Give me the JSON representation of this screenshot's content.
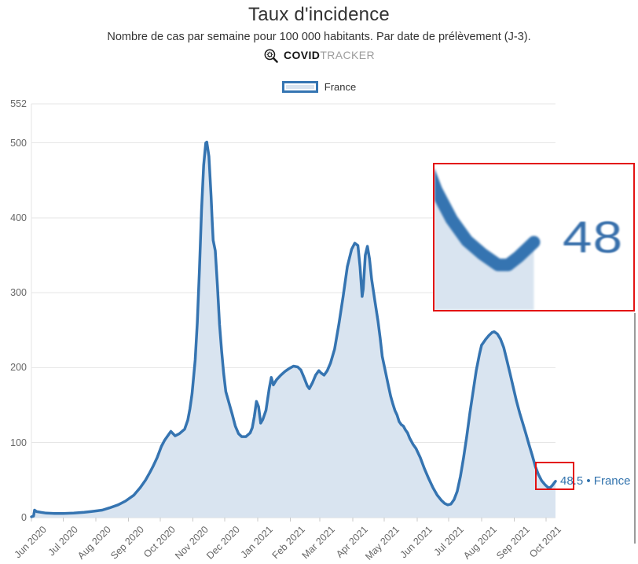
{
  "header": {
    "title": "Taux d'incidence",
    "subtitle": "Nombre de cas par semaine pour 100 000 habitants. Par date de prélèvement (J-3).",
    "brand": {
      "bold": "COVID",
      "light": "TRACKER",
      "icon": "virus-magnifier-icon"
    }
  },
  "legend": {
    "label": "France"
  },
  "annotations": {
    "end_label": "48.5 • France",
    "inset_zoom_text": "48"
  },
  "colors": {
    "line": "#3574b1",
    "fill": "#d9e4f0",
    "grid": "#e6e6e6",
    "axis_line": "#d6d6d6",
    "tick": "#c8c8c8",
    "axis_text": "#666666",
    "label_blue": "#3273ad",
    "highlight_red": "#e31212"
  },
  "chart_data": {
    "type": "area",
    "title": "Taux d'incidence",
    "subtitle": "Nombre de cas par semaine pour 100 000 habitants. Par date de prélèvement (J-3).",
    "legend_position": "top-center",
    "grid": true,
    "ylim": [
      0,
      552
    ],
    "y_ticks": [
      0,
      100,
      200,
      300,
      400,
      500,
      552
    ],
    "x_unit": "days since 2020-06-01",
    "x_range_days": 496,
    "x_ticks": [
      {
        "label": "Jun 2020",
        "day": 0
      },
      {
        "label": "Jul 2020",
        "day": 30
      },
      {
        "label": "Aug 2020",
        "day": 61
      },
      {
        "label": "Sep 2020",
        "day": 92
      },
      {
        "label": "Oct 2020",
        "day": 122
      },
      {
        "label": "Nov 2020",
        "day": 153
      },
      {
        "label": "Dec 2020",
        "day": 183
      },
      {
        "label": "Jan 2021",
        "day": 214
      },
      {
        "label": "Feb 2021",
        "day": 245
      },
      {
        "label": "Mar 2021",
        "day": 273
      },
      {
        "label": "Apr 2021",
        "day": 304
      },
      {
        "label": "May 2021",
        "day": 334
      },
      {
        "label": "Jun 2021",
        "day": 365
      },
      {
        "label": "Jul 2021",
        "day": 395
      },
      {
        "label": "Aug 2021",
        "day": 426
      },
      {
        "label": "Sep 2021",
        "day": 457
      },
      {
        "label": "Oct 2021",
        "day": 487
      }
    ],
    "series": [
      {
        "name": "France",
        "last_value": 48.5,
        "points": [
          [
            0,
            1
          ],
          [
            2,
            2
          ],
          [
            3,
            10
          ],
          [
            5,
            8
          ],
          [
            9,
            7
          ],
          [
            14,
            6
          ],
          [
            22,
            5.5
          ],
          [
            30,
            5.5
          ],
          [
            40,
            6
          ],
          [
            50,
            7
          ],
          [
            56,
            8
          ],
          [
            62,
            9
          ],
          [
            67,
            10
          ],
          [
            74,
            13
          ],
          [
            82,
            17
          ],
          [
            89,
            22
          ],
          [
            97,
            30
          ],
          [
            103,
            40
          ],
          [
            108,
            50
          ],
          [
            112,
            60
          ],
          [
            115,
            68
          ],
          [
            119,
            80
          ],
          [
            123,
            95
          ],
          [
            126,
            103
          ],
          [
            128,
            107
          ],
          [
            132,
            115
          ],
          [
            136,
            109
          ],
          [
            140,
            112
          ],
          [
            145,
            118
          ],
          [
            148,
            130
          ],
          [
            150,
            145
          ],
          [
            152,
            165
          ],
          [
            155,
            210
          ],
          [
            157,
            260
          ],
          [
            159,
            330
          ],
          [
            161,
            410
          ],
          [
            163,
            470
          ],
          [
            165,
            500
          ],
          [
            166,
            501
          ],
          [
            168,
            482
          ],
          [
            170,
            430
          ],
          [
            171,
            397
          ],
          [
            172,
            370
          ],
          [
            174,
            356
          ],
          [
            176,
            310
          ],
          [
            178,
            258
          ],
          [
            180,
            222
          ],
          [
            182,
            192
          ],
          [
            184,
            168
          ],
          [
            186,
            158
          ],
          [
            188,
            148
          ],
          [
            190,
            138
          ],
          [
            193,
            122
          ],
          [
            196,
            112
          ],
          [
            199,
            108
          ],
          [
            203,
            108
          ],
          [
            207,
            113
          ],
          [
            209,
            120
          ],
          [
            211,
            135
          ],
          [
            213,
            155
          ],
          [
            215,
            148
          ],
          [
            217,
            126
          ],
          [
            219,
            131
          ],
          [
            222,
            143
          ],
          [
            225,
            172
          ],
          [
            227,
            187
          ],
          [
            229,
            177
          ],
          [
            232,
            184
          ],
          [
            236,
            190
          ],
          [
            240,
            195
          ],
          [
            244,
            199
          ],
          [
            248,
            202
          ],
          [
            252,
            201
          ],
          [
            255,
            197
          ],
          [
            258,
            187
          ],
          [
            261,
            176
          ],
          [
            263,
            172
          ],
          [
            266,
            180
          ],
          [
            269,
            190
          ],
          [
            272,
            196
          ],
          [
            274,
            193
          ],
          [
            277,
            190
          ],
          [
            280,
            196
          ],
          [
            283,
            206
          ],
          [
            287,
            225
          ],
          [
            291,
            258
          ],
          [
            295,
            295
          ],
          [
            299,
            335
          ],
          [
            303,
            358
          ],
          [
            306,
            366
          ],
          [
            309,
            363
          ],
          [
            311,
            335
          ],
          [
            313,
            295
          ],
          [
            314,
            305
          ],
          [
            316,
            350
          ],
          [
            318,
            362
          ],
          [
            320,
            345
          ],
          [
            322,
            318
          ],
          [
            325,
            290
          ],
          [
            328,
            262
          ],
          [
            330,
            240
          ],
          [
            332,
            215
          ],
          [
            335,
            195
          ],
          [
            338,
            175
          ],
          [
            340,
            162
          ],
          [
            342,
            152
          ],
          [
            344,
            143
          ],
          [
            346,
            137
          ],
          [
            348,
            128
          ],
          [
            350,
            124
          ],
          [
            352,
            122
          ],
          [
            354,
            117
          ],
          [
            356,
            113
          ],
          [
            358,
            106
          ],
          [
            361,
            98
          ],
          [
            364,
            92
          ],
          [
            368,
            80
          ],
          [
            372,
            65
          ],
          [
            376,
            52
          ],
          [
            380,
            40
          ],
          [
            384,
            30
          ],
          [
            388,
            23
          ],
          [
            391,
            19
          ],
          [
            394,
            17
          ],
          [
            397,
            18
          ],
          [
            400,
            24
          ],
          [
            403,
            35
          ],
          [
            406,
            55
          ],
          [
            409,
            80
          ],
          [
            412,
            108
          ],
          [
            415,
            140
          ],
          [
            418,
            168
          ],
          [
            421,
            196
          ],
          [
            424,
            218
          ],
          [
            426,
            230
          ],
          [
            428,
            234
          ],
          [
            430,
            238
          ],
          [
            433,
            243
          ],
          [
            436,
            247
          ],
          [
            438,
            248
          ],
          [
            441,
            245
          ],
          [
            444,
            238
          ],
          [
            447,
            227
          ],
          [
            450,
            210
          ],
          [
            453,
            192
          ],
          [
            456,
            174
          ],
          [
            459,
            156
          ],
          [
            462,
            140
          ],
          [
            465,
            126
          ],
          [
            468,
            112
          ],
          [
            471,
            97
          ],
          [
            474,
            83
          ],
          [
            477,
            68
          ],
          [
            480,
            57
          ],
          [
            483,
            49
          ],
          [
            486,
            44
          ],
          [
            489,
            40
          ],
          [
            491,
            40
          ],
          [
            493,
            43
          ],
          [
            496,
            48.5
          ]
        ]
      }
    ]
  }
}
